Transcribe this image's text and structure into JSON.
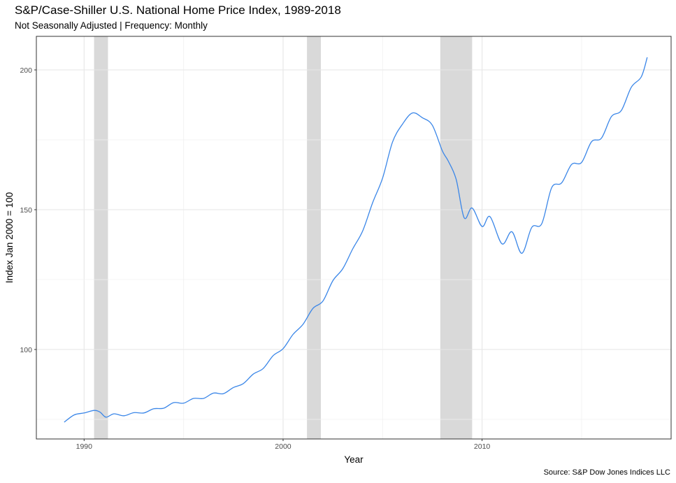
{
  "chart_data": {
    "type": "line",
    "title": "S&P/Case-Shiller U.S. National Home Price Index, 1989-2018",
    "subtitle": "Not Seasonally Adjusted | Frequency: Monthly",
    "caption": "Source: S&P Dow Jones Indices LLC",
    "xlabel": "Year",
    "ylabel": "Index Jan 2000 = 100",
    "xlim": [
      1987.6,
      2019.5
    ],
    "ylim": [
      68,
      212
    ],
    "x_ticks": [
      1990,
      2000,
      2010
    ],
    "y_ticks": [
      100,
      150,
      200
    ],
    "grid": true,
    "line_color": "#3a86e8",
    "recession_color": "#d9d9d9",
    "recessions": [
      {
        "start": 1990.5,
        "end": 1991.2
      },
      {
        "start": 2001.2,
        "end": 2001.9
      },
      {
        "start": 2007.9,
        "end": 2009.5
      }
    ],
    "series": [
      {
        "points": [
          [
            1989.0,
            74.0
          ],
          [
            1989.5,
            76.6
          ],
          [
            1990.0,
            77.3
          ],
          [
            1990.5,
            78.2
          ],
          [
            1990.8,
            77.6
          ],
          [
            1991.1,
            75.8
          ],
          [
            1991.5,
            77.0
          ],
          [
            1992.0,
            76.3
          ],
          [
            1992.5,
            77.4
          ],
          [
            1993.0,
            77.3
          ],
          [
            1993.5,
            78.8
          ],
          [
            1994.0,
            79.0
          ],
          [
            1994.5,
            81.0
          ],
          [
            1995.0,
            80.8
          ],
          [
            1995.5,
            82.5
          ],
          [
            1996.0,
            82.5
          ],
          [
            1996.5,
            84.4
          ],
          [
            1997.0,
            84.2
          ],
          [
            1997.5,
            86.4
          ],
          [
            1998.0,
            87.8
          ],
          [
            1998.5,
            91.2
          ],
          [
            1999.0,
            93.2
          ],
          [
            1999.5,
            97.8
          ],
          [
            2000.0,
            100.3
          ],
          [
            2000.5,
            105.4
          ],
          [
            2001.0,
            109.0
          ],
          [
            2001.5,
            114.7
          ],
          [
            2002.0,
            117.3
          ],
          [
            2002.5,
            124.6
          ],
          [
            2003.0,
            128.9
          ],
          [
            2003.5,
            136.0
          ],
          [
            2004.0,
            142.4
          ],
          [
            2004.5,
            152.5
          ],
          [
            2005.0,
            161.3
          ],
          [
            2005.5,
            174.2
          ],
          [
            2006.0,
            180.6
          ],
          [
            2006.5,
            184.6
          ],
          [
            2007.0,
            182.9
          ],
          [
            2007.5,
            180.2
          ],
          [
            2008.0,
            171.1
          ],
          [
            2008.3,
            167.4
          ],
          [
            2008.7,
            160.8
          ],
          [
            2009.1,
            147.1
          ],
          [
            2009.5,
            150.6
          ],
          [
            2010.0,
            144.0
          ],
          [
            2010.4,
            147.5
          ],
          [
            2011.0,
            137.8
          ],
          [
            2011.5,
            142.1
          ],
          [
            2012.0,
            134.4
          ],
          [
            2012.5,
            143.7
          ],
          [
            2013.0,
            145.0
          ],
          [
            2013.5,
            157.9
          ],
          [
            2014.0,
            159.6
          ],
          [
            2014.5,
            166.2
          ],
          [
            2015.0,
            166.9
          ],
          [
            2015.5,
            174.3
          ],
          [
            2016.0,
            175.6
          ],
          [
            2016.5,
            183.3
          ],
          [
            2017.0,
            185.5
          ],
          [
            2017.5,
            193.8
          ],
          [
            2018.0,
            197.5
          ],
          [
            2018.3,
            204.5
          ]
        ]
      }
    ]
  }
}
